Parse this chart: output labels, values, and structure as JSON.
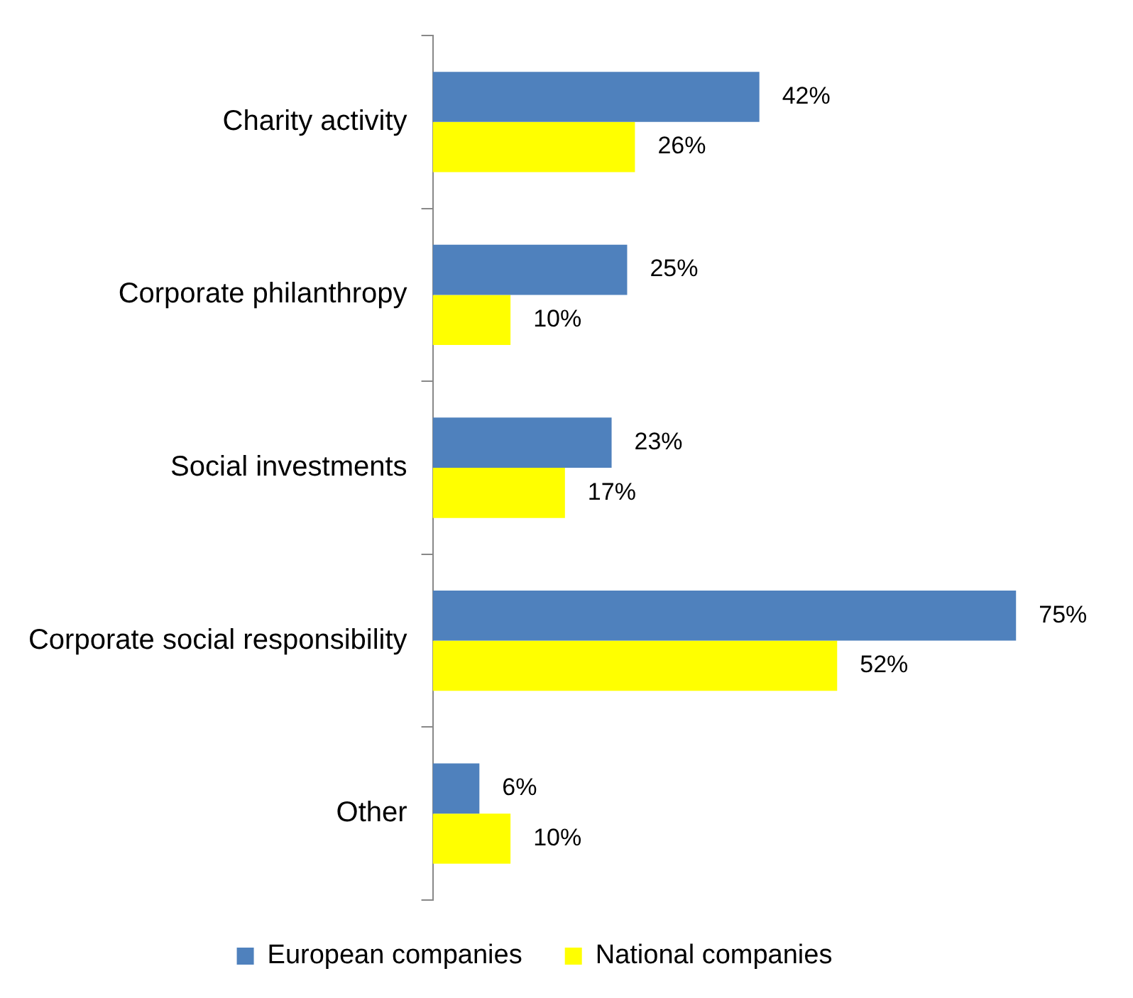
{
  "chart_data": {
    "type": "bar",
    "orientation": "horizontal",
    "categories": [
      "Charity activity",
      "Corporate philanthropy",
      "Social investments",
      "Corporate social responsibility",
      "Other"
    ],
    "series": [
      {
        "name": "European companies",
        "color": "#4f81bd",
        "values": [
          42,
          25,
          23,
          75,
          6
        ],
        "value_labels": [
          "42%",
          "25%",
          "23%",
          "75%",
          "6%"
        ]
      },
      {
        "name": "National companies",
        "color": "#ffff00",
        "values": [
          26,
          10,
          17,
          52,
          10
        ],
        "value_labels": [
          "26%",
          "10%",
          "17%",
          "52%",
          "10%"
        ]
      }
    ],
    "legend": "bottom"
  }
}
